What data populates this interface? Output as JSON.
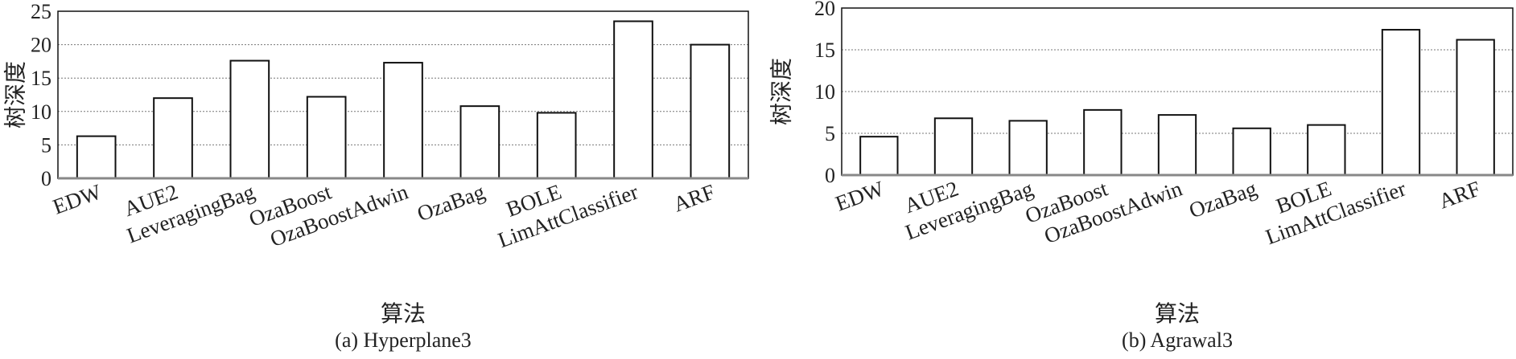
{
  "chart_data": [
    {
      "type": "bar",
      "categories": [
        "EDW",
        "AUE2",
        "LeveragingBag",
        "OzaBoost",
        "OzaBoostAdwin",
        "OzaBag",
        "BOLE",
        "LimAttClassifier",
        "ARF"
      ],
      "series": [
        {
          "values": [
            6.3,
            12.0,
            17.6,
            12.2,
            17.3,
            10.8,
            9.8,
            23.5,
            20.0
          ]
        }
      ],
      "ylim": [
        0,
        25
      ],
      "yticks": [
        0,
        5,
        10,
        15,
        20,
        25
      ],
      "xlabel": "算法",
      "ylabel": "树深度",
      "caption": "(a) Hyperplane3",
      "grid": "horizontal-dotted",
      "bar_fill": "#ffffff",
      "bar_stroke": "#111111"
    },
    {
      "type": "bar",
      "categories": [
        "EDW",
        "AUE2",
        "LeveragingBag",
        "OzaBoost",
        "OzaBoostAdwin",
        "OzaBag",
        "BOLE",
        "LimAttClassifier",
        "ARF"
      ],
      "series": [
        {
          "values": [
            4.6,
            6.8,
            6.5,
            7.8,
            7.2,
            5.6,
            6.0,
            17.4,
            16.2
          ]
        }
      ],
      "ylim": [
        0,
        20
      ],
      "yticks": [
        0,
        5,
        10,
        15,
        20
      ],
      "xlabel": "算法",
      "ylabel": "树深度",
      "caption": "(b) Agrawal3",
      "grid": "horizontal-dotted",
      "bar_fill": "#ffffff",
      "bar_stroke": "#111111"
    }
  ]
}
